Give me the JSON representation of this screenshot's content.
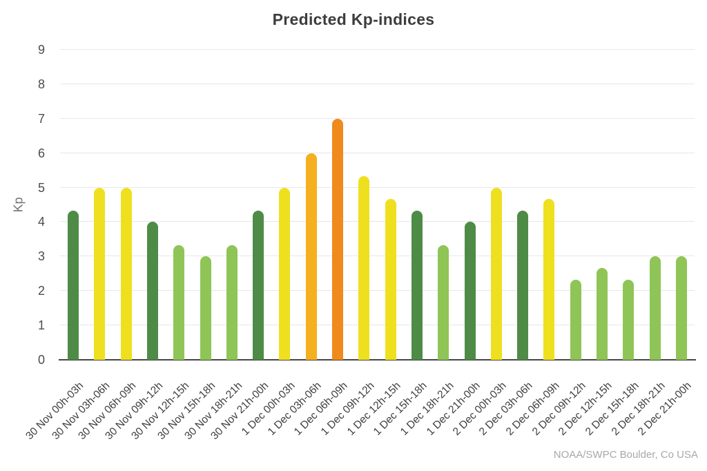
{
  "chart_data": {
    "type": "bar",
    "title": "Predicted Kp-indices",
    "ylabel": "Kp",
    "ylim": [
      0,
      9
    ],
    "yticks": [
      0,
      1,
      2,
      3,
      4,
      5,
      6,
      7,
      8,
      9
    ],
    "grid": true,
    "legend_position": "none",
    "categories": [
      "30 Nov 00h-03h",
      "30 Nov 03h-06h",
      "30 Nov 06h-09h",
      "30 Nov 09h-12h",
      "30 Nov 12h-15h",
      "30 Nov 15h-18h",
      "30 Nov 18h-21h",
      "30 Nov 21h-00h",
      "1 Dec 00h-03h",
      "1 Dec 03h-06h",
      "1 Dec 06h-09h",
      "1 Dec 09h-12h",
      "1 Dec 12h-15h",
      "1 Dec 15h-18h",
      "1 Dec 18h-21h",
      "1 Dec 21h-00h",
      "2 Dec 00h-03h",
      "2 Dec 03h-06h",
      "2 Dec 06h-09h",
      "2 Dec 09h-12h",
      "2 Dec 12h-15h",
      "2 Dec 15h-18h",
      "2 Dec 18h-21h",
      "2 Dec 21h-00h"
    ],
    "values": [
      4.33,
      5,
      5,
      4,
      3.33,
      3,
      3.33,
      4.33,
      5,
      6,
      7,
      5.33,
      4.67,
      4.33,
      3.33,
      4,
      5,
      4.33,
      4.67,
      2.33,
      2.67,
      2.33,
      3,
      3
    ],
    "bar_colors": [
      "green_dark",
      "yellow",
      "yellow",
      "green_dark",
      "green_light",
      "green_light",
      "green_light",
      "green_dark",
      "yellow",
      "amber",
      "orange",
      "yellow",
      "yellow",
      "green_dark",
      "green_light",
      "green_dark",
      "yellow",
      "green_dark",
      "yellow",
      "green_light",
      "green_light",
      "green_light",
      "green_light",
      "green_light"
    ],
    "palette": {
      "green_dark": "#4e8b47",
      "green_light": "#8ec556",
      "yellow": "#efe01f",
      "amber": "#f4b01e",
      "orange": "#f08a1c"
    },
    "watermark": "NOAA/SWPC Boulder, Co USA"
  }
}
